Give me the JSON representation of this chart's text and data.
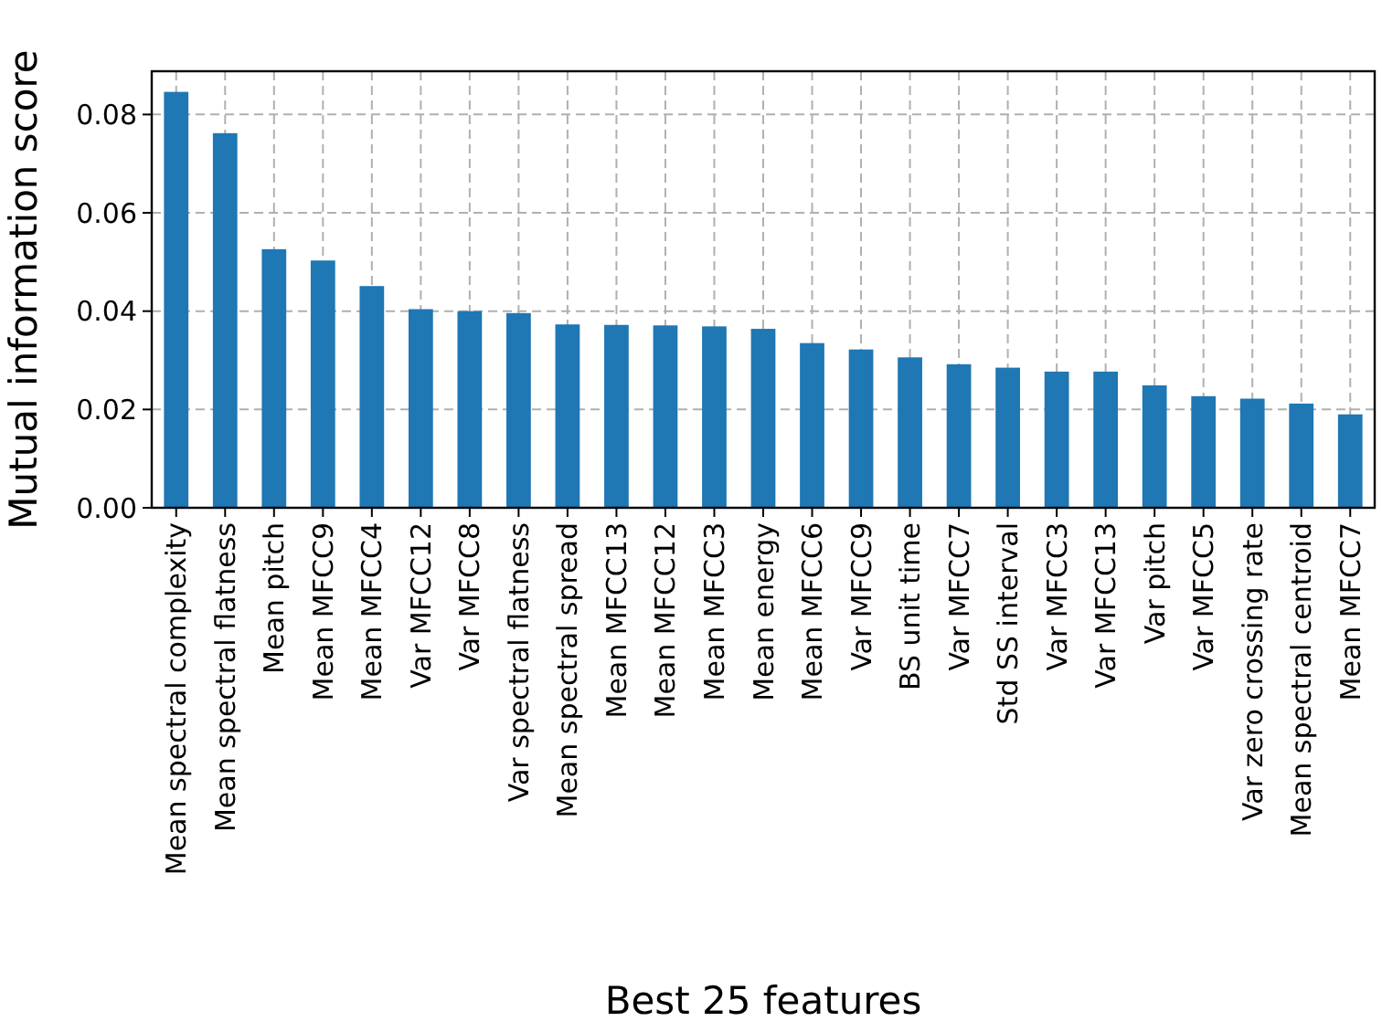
{
  "chart_data": {
    "type": "bar",
    "xlabel": "Best 25 features",
    "ylabel": "Mutual information score",
    "categories": [
      "Mean spectral complexity",
      "Mean spectral flatness",
      "Mean pitch",
      "Mean MFCC9",
      "Mean MFCC4",
      "Var MFCC12",
      "Var MFCC8",
      "Var spectral flatness",
      "Mean spectral spread",
      "Mean MFCC13",
      "Mean MFCC12",
      "Mean MFCC3",
      "Mean energy",
      "Mean MFCC6",
      "Var MFCC9",
      "BS unit time",
      "Var MFCC7",
      "Std SS interval",
      "Var MFCC3",
      "Var MFCC13",
      "Var pitch",
      "Var MFCC5",
      "Var zero crossing rate",
      "Mean spectral centroid",
      "Mean MFCC7"
    ],
    "values": [
      0.0846,
      0.0762,
      0.0526,
      0.0503,
      0.0451,
      0.0404,
      0.04,
      0.0396,
      0.0373,
      0.0372,
      0.0371,
      0.0369,
      0.0364,
      0.0335,
      0.0322,
      0.0306,
      0.0292,
      0.0285,
      0.0277,
      0.0277,
      0.0249,
      0.0227,
      0.0222,
      0.0212,
      0.019
    ],
    "color": "#1f77b4",
    "ylim": [
      0,
      0.0888
    ],
    "yticks": [
      {
        "value": 0,
        "label": "0.00"
      },
      {
        "value": 0.02,
        "label": "0.02"
      },
      {
        "value": 0.04,
        "label": "0.04"
      },
      {
        "value": 0.06,
        "label": "0.06"
      },
      {
        "value": 0.08,
        "label": "0.08"
      }
    ],
    "grid": true
  }
}
